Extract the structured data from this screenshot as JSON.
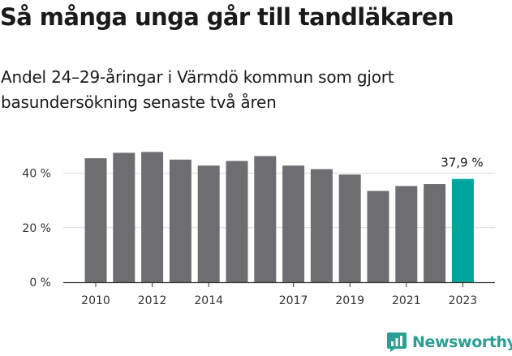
{
  "title": "Så många unga går till tandläkaren",
  "subtitle": "Andel 24–29-åringar i Värmdö kommun som gjort basundersökning senaste två åren",
  "brand": {
    "name": "Newsworthy",
    "icon": "newsworthy-logo-icon"
  },
  "colors": {
    "bar": "#6e6d72",
    "highlight": "#00a49a",
    "grid": "#d9d9d9",
    "text": "#333333"
  },
  "chart_data": {
    "type": "bar",
    "categories": [
      "2010",
      "2011",
      "2012",
      "2013",
      "2014",
      "2015",
      "2016",
      "2017",
      "2018",
      "2019",
      "2020",
      "2021",
      "2022",
      "2023"
    ],
    "values": [
      45.5,
      47.5,
      47.8,
      45.0,
      42.8,
      44.5,
      46.3,
      42.8,
      41.5,
      39.5,
      33.5,
      35.3,
      36.0,
      37.9
    ],
    "highlight_index": 13,
    "x_tick_labels": [
      "2010",
      "2012",
      "2014",
      "2017",
      "2019",
      "2021",
      "2023"
    ],
    "y_ticks": [
      0,
      20,
      40
    ],
    "y_tick_labels": [
      "0 %",
      "20 %",
      "40 %"
    ],
    "ylim": [
      0,
      50
    ],
    "data_labels": [
      {
        "category": "2023",
        "text": "37,9 %"
      }
    ],
    "grid": true
  }
}
